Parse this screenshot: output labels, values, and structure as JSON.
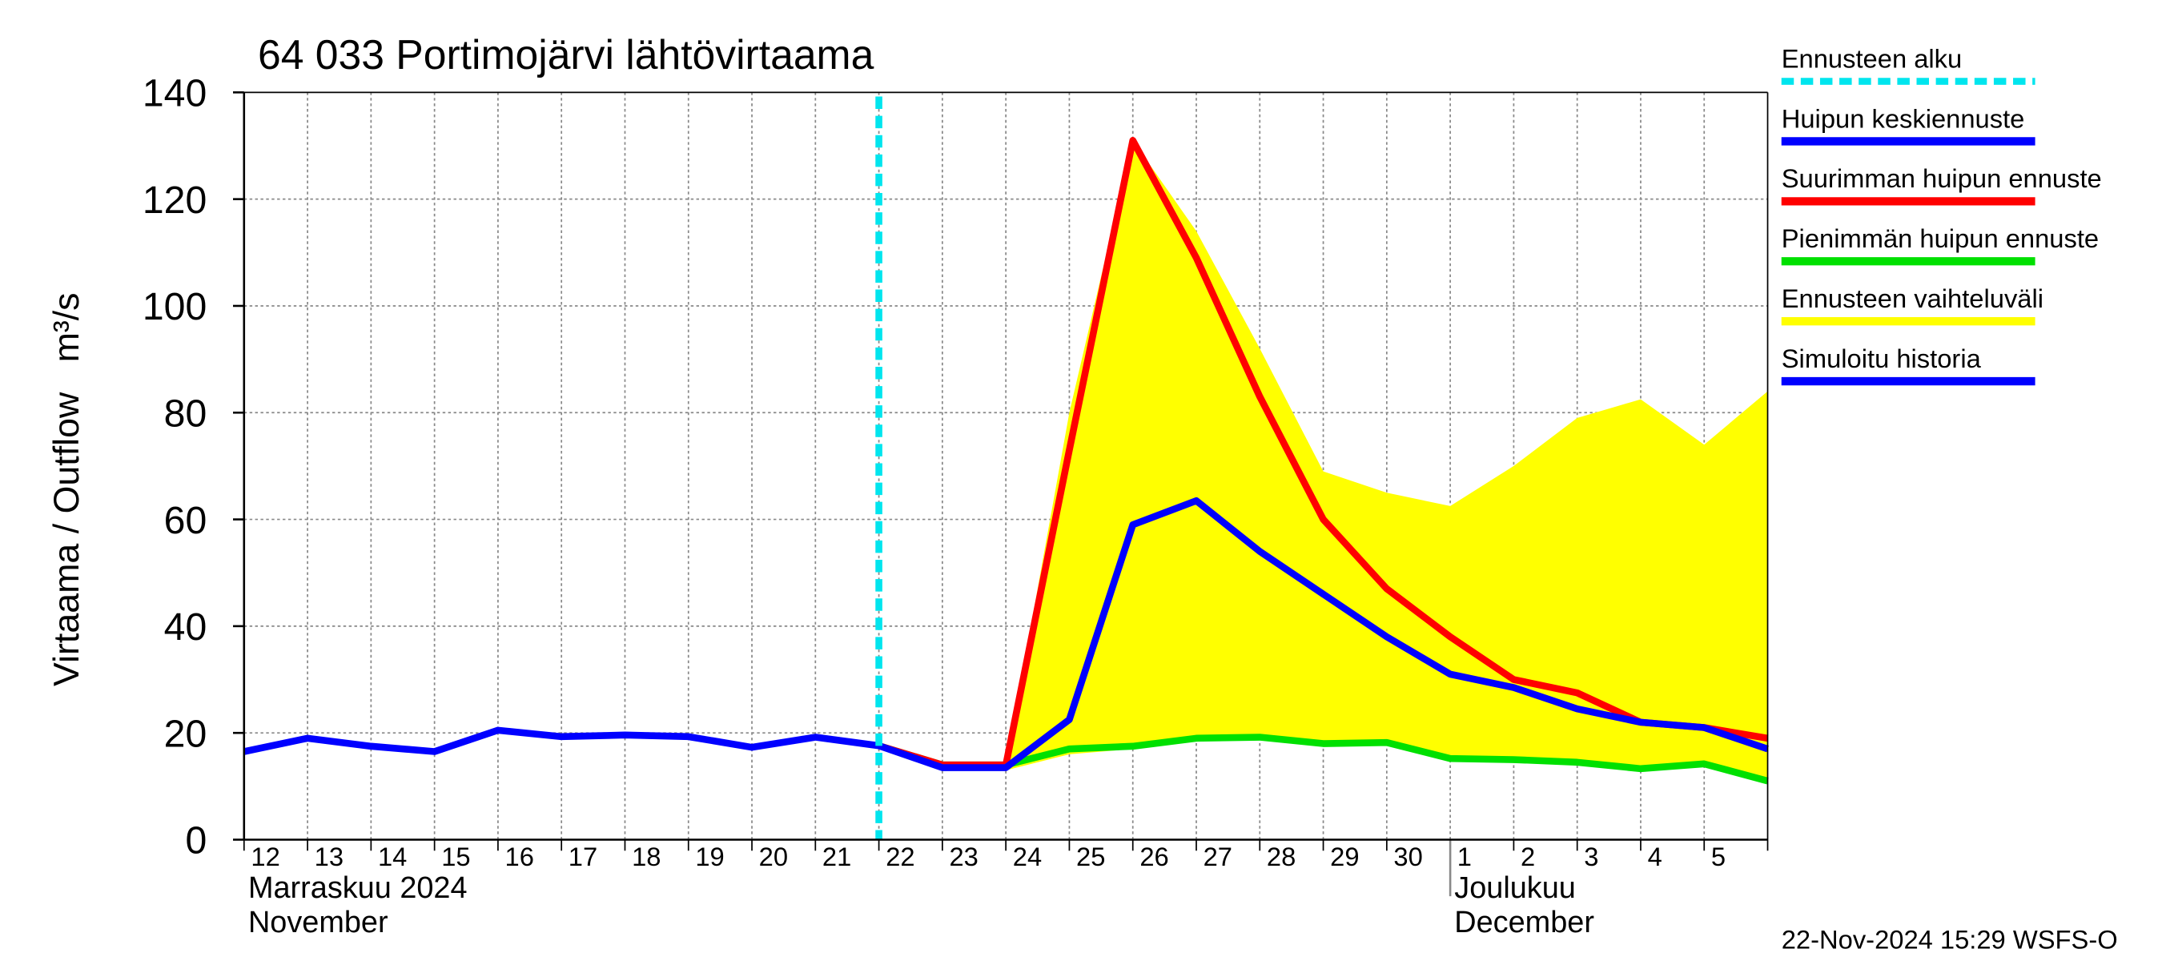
{
  "chart_data": {
    "type": "line",
    "title": "64 033 Portimojärvi lähtövirtaama",
    "y_label": "Virtaama / Outflow   m³/s",
    "categories": [
      "12",
      "13",
      "14",
      "15",
      "16",
      "17",
      "18",
      "19",
      "20",
      "21",
      "22",
      "23",
      "24",
      "25",
      "26",
      "27",
      "28",
      "29",
      "30",
      "1",
      "2",
      "3",
      "4",
      "5",
      null
    ],
    "months": [
      {
        "fi": "Marraskuu 2024",
        "en": "November"
      },
      {
        "fi": "Joulukuu",
        "en": "December"
      }
    ],
    "ylim": [
      0,
      140
    ],
    "yticks": [
      0,
      20,
      40,
      60,
      80,
      100,
      120,
      140
    ],
    "grid": true,
    "forecast_start": {
      "name": "Ennusteen alku",
      "color": "#00e5ee",
      "x": 10
    },
    "series": [
      {
        "name": "Huipun keskiennuste",
        "color": "#0000ff",
        "style": "line",
        "values": [
          null,
          null,
          null,
          null,
          null,
          null,
          null,
          null,
          null,
          null,
          17.6,
          13.5,
          13.5,
          22.5,
          59,
          63.5,
          54,
          46,
          38,
          31,
          28.5,
          24.5,
          22,
          21,
          17
        ]
      },
      {
        "name": "Suurimman huipun ennuste",
        "color": "#ff0000",
        "style": "line",
        "values": [
          null,
          null,
          null,
          null,
          null,
          null,
          null,
          null,
          null,
          null,
          17.6,
          14,
          14,
          73,
          131,
          109,
          83,
          60,
          47,
          38,
          30,
          27.5,
          22,
          21,
          19
        ]
      },
      {
        "name": "Pienimmän huipun ennuste",
        "color": "#00e000",
        "style": "line",
        "values": [
          null,
          null,
          null,
          null,
          null,
          null,
          null,
          null,
          null,
          null,
          17.6,
          14,
          14,
          17,
          17.5,
          19,
          19.2,
          18,
          18.2,
          15.2,
          15,
          14.5,
          13.3,
          14.2,
          11
        ]
      },
      {
        "name": "Ennusteen vaihteluväli",
        "color": "#ffff00",
        "style": "band",
        "values": [
          null,
          null,
          null,
          null,
          null,
          null,
          null,
          null,
          null,
          null,
          17.6,
          14,
          14,
          80,
          131,
          114,
          92,
          69,
          65,
          62.5,
          70,
          79,
          82.5,
          74,
          84
        ],
        "lower": [
          null,
          null,
          null,
          null,
          null,
          null,
          null,
          null,
          null,
          null,
          17.6,
          13.5,
          13,
          16,
          17,
          19,
          19.2,
          18,
          18.2,
          15.2,
          15,
          14.5,
          13.3,
          14.2,
          11
        ]
      },
      {
        "name": "Simuloitu historia",
        "color": "#0000ff",
        "style": "line",
        "values": [
          16.5,
          19,
          17.5,
          16.5,
          20.5,
          19.3,
          19.6,
          19.3,
          17.3,
          19.2,
          17.6,
          null,
          null,
          null,
          null,
          null,
          null,
          null,
          null,
          null,
          null,
          null,
          null,
          null,
          null
        ]
      }
    ],
    "footer": "22-Nov-2024 15:29 WSFS-O"
  }
}
